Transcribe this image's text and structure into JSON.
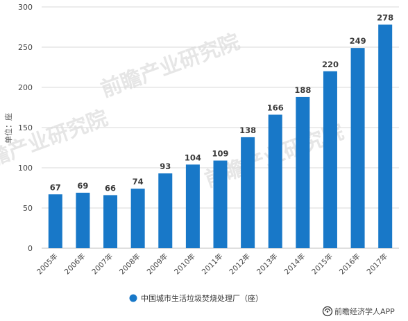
{
  "chart_data": {
    "type": "bar",
    "categories": [
      "2005年",
      "2006年",
      "2007年",
      "2008年",
      "2009年",
      "2010年",
      "2011年",
      "2012年",
      "2013年",
      "2014年",
      "2015年",
      "2016年",
      "2017年"
    ],
    "series": [
      {
        "name": "中国城市生活垃圾焚烧处理厂（座）",
        "values": [
          67,
          69,
          66,
          74,
          93,
          104,
          109,
          138,
          166,
          188,
          220,
          249,
          278
        ],
        "color": "#1878c8"
      }
    ],
    "ylabel": "单位：座",
    "ylim": [
      0,
      300
    ],
    "yticks": [
      0,
      50,
      100,
      150,
      200,
      250,
      300
    ],
    "grid": true,
    "data_labels": true,
    "legend_position": "bottom"
  },
  "legend": {
    "label": "中国城市生活垃圾焚烧处理厂（座）",
    "color": "#1878c8"
  },
  "brand": {
    "text": "前瞻经济学人APP",
    "icon": "brand-logo-icon"
  },
  "watermark": {
    "text": "前瞻产业研究院"
  },
  "colors": {
    "bar": "#1878c8",
    "grid": "#d9d9d9",
    "axis": "#bfbfbf"
  }
}
